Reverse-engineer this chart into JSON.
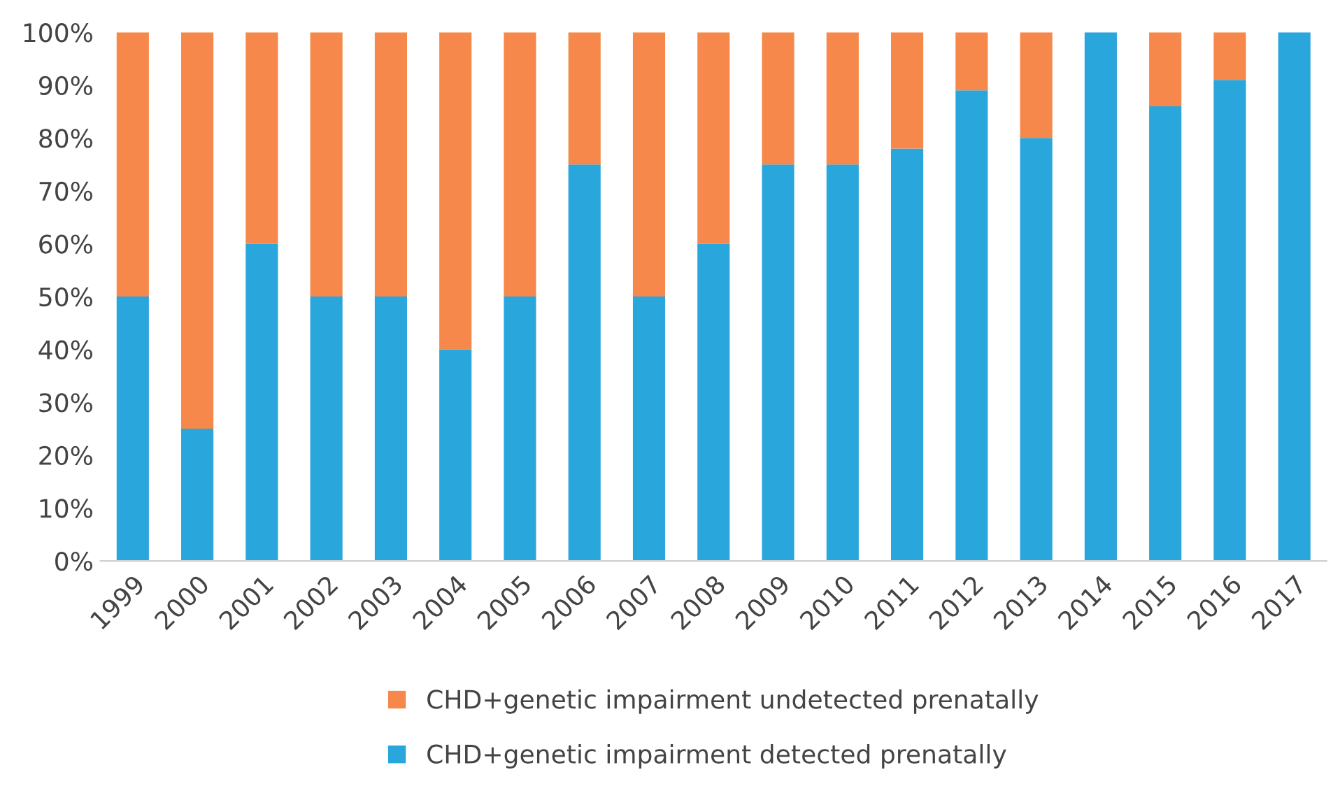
{
  "chart_data": {
    "type": "bar",
    "stacked": true,
    "categories": [
      "1999",
      "2000",
      "2001",
      "2002",
      "2003",
      "2004",
      "2005",
      "2006",
      "2007",
      "2008",
      "2009",
      "2010",
      "2011",
      "2012",
      "2013",
      "2014",
      "2015",
      "2016",
      "2017"
    ],
    "series": [
      {
        "name": "CHD+genetic impairment detected prenatally",
        "color": "#29a6dc",
        "values": [
          50,
          25,
          60,
          50,
          50,
          40,
          50,
          75,
          50,
          60,
          75,
          75,
          78,
          89,
          80,
          100,
          86,
          91,
          100
        ]
      },
      {
        "name": "CHD+genetic impairment undetected prenatally",
        "color": "#f5884a",
        "values": [
          50,
          75,
          40,
          50,
          50,
          60,
          50,
          25,
          50,
          40,
          25,
          25,
          22,
          11,
          20,
          0,
          14,
          9,
          0
        ]
      }
    ],
    "ylim": [
      0,
      100
    ],
    "yticks": [
      {
        "value": 0,
        "label": "0%"
      },
      {
        "value": 10,
        "label": "10%"
      },
      {
        "value": 20,
        "label": "20%"
      },
      {
        "value": 30,
        "label": "30%"
      },
      {
        "value": 40,
        "label": "40%"
      },
      {
        "value": 50,
        "label": "50%"
      },
      {
        "value": 60,
        "label": "60%"
      },
      {
        "value": 70,
        "label": "70%"
      },
      {
        "value": 80,
        "label": "80%"
      },
      {
        "value": 90,
        "label": "90%"
      },
      {
        "value": 100,
        "label": "100%"
      }
    ],
    "legend": "bottom"
  }
}
